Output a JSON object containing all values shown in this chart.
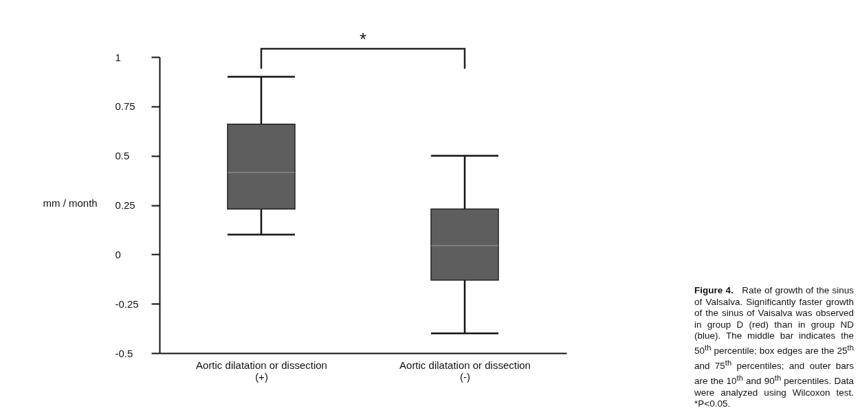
{
  "chart_data": {
    "type": "box",
    "ylabel": "mm / month",
    "categories": [
      "Aortic dilatation or dissection\n(+)",
      "Aortic dilatation or dissection\n(-)"
    ],
    "boxes": [
      {
        "low": 0.1,
        "q1": 0.23,
        "median": 0.415,
        "q3": 0.66,
        "high": 0.9
      },
      {
        "low": -0.4,
        "q1": -0.13,
        "median": 0.045,
        "q3": 0.23,
        "high": 0.5
      }
    ],
    "color": "#5e5e5e",
    "ylim": [
      -0.5,
      1
    ],
    "yticks": [
      -0.5,
      -0.25,
      0,
      0.25,
      0.5,
      0.75,
      1
    ],
    "annotations": [
      "*",
      "Figure 4.",
      "Rate of growth of the sinus of Valsalva. Significantly faster growth of the sinus of Vaisalva was observed in group D (red) than in group ND (blue). The middle bar indicates the 50$^{th}$ percentile; box edges are the 25$^{th}$ and 75$^{th}$ percentiles; and outer bars are the 10$^{th}$ and 90$^{th}$ percentiles. Data were analyzed using Wilcoxon test. *P<0.05."
    ]
  }
}
